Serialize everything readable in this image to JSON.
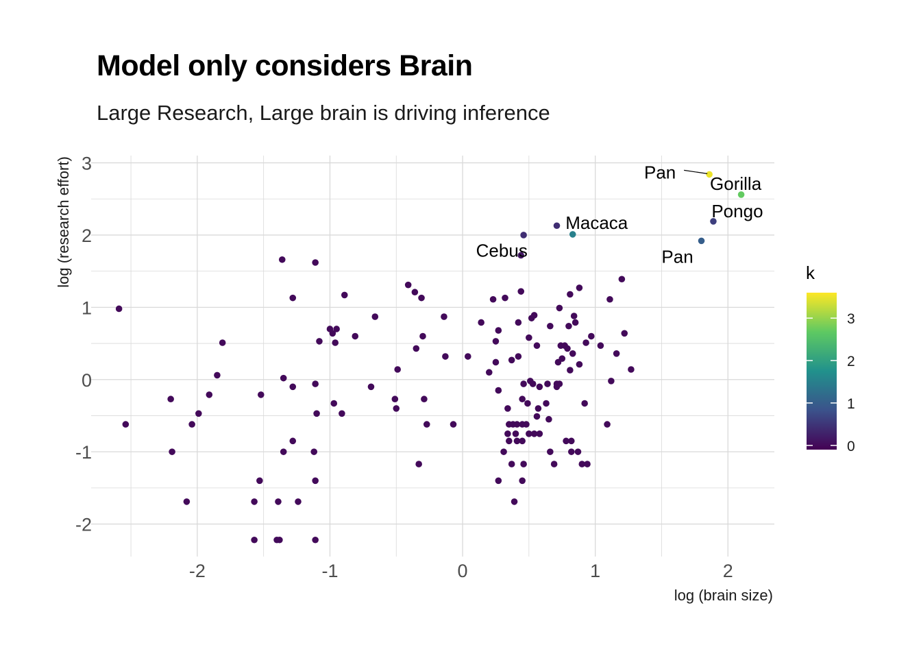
{
  "chart_data": {
    "type": "scatter",
    "title": "Model only considers Brain",
    "subtitle": "Large Research, Large brain is driving inference",
    "xlabel": "log (brain size)",
    "ylabel": "log (research effort)",
    "xlim": [
      -2.8,
      2.35
    ],
    "ylim": [
      -2.45,
      3.1
    ],
    "xticks": [
      -2,
      -1,
      0,
      1,
      2
    ],
    "xtick_labels": [
      "-2",
      "-1",
      "0",
      "1",
      "2"
    ],
    "yticks": [
      -2,
      -1,
      0,
      1,
      2,
      3
    ],
    "ytick_labels": [
      "-2",
      "-1",
      "0",
      "1",
      "2",
      "3"
    ],
    "grid": true,
    "legend": {
      "title": "k",
      "placement": "right",
      "type": "colorbar",
      "range": [
        -0.1,
        3.6
      ],
      "ticks": [
        0,
        1,
        2,
        3
      ],
      "tick_labels": [
        "0",
        "1",
        "2",
        "3"
      ]
    },
    "colors": {
      "low": "#440154",
      "high": "#fde725",
      "palette": [
        "#440154",
        "#3b528b",
        "#21918c",
        "#5ec962",
        "#fde725"
      ],
      "grid": "#d9d9d9",
      "label_line": "#000000"
    },
    "labels": [
      {
        "text": "Pan",
        "x": 1.86,
        "y": 2.84
      },
      {
        "text": "Gorilla",
        "x": 2.1,
        "y": 2.56
      },
      {
        "text": "Pongo",
        "x": 1.89,
        "y": 2.19
      },
      {
        "text": "Macaca",
        "x": 0.83,
        "y": 2.01
      },
      {
        "text": "Cebus",
        "x": 0.44,
        "y": 1.72
      },
      {
        "text": "Pan",
        "x": 1.8,
        "y": 1.92
      }
    ],
    "points": [
      {
        "x": 1.86,
        "y": 2.84,
        "k": 3.5
      },
      {
        "x": 2.1,
        "y": 2.56,
        "k": 2.7
      },
      {
        "x": 1.89,
        "y": 2.19,
        "k": 0.6
      },
      {
        "x": 0.83,
        "y": 2.01,
        "k": 1.5
      },
      {
        "x": 0.71,
        "y": 2.13,
        "k": 0.4
      },
      {
        "x": 0.46,
        "y": 2.0,
        "k": 0.4
      },
      {
        "x": 0.44,
        "y": 1.72,
        "k": 0.15
      },
      {
        "x": 1.8,
        "y": 1.92,
        "k": 1.0
      },
      {
        "x": -2.59,
        "y": 0.98,
        "k": 0
      },
      {
        "x": -2.54,
        "y": -0.62,
        "k": 0
      },
      {
        "x": -2.2,
        "y": -0.27,
        "k": 0
      },
      {
        "x": -2.19,
        "y": -1.0,
        "k": 0
      },
      {
        "x": -2.08,
        "y": -1.69,
        "k": 0
      },
      {
        "x": -2.04,
        "y": -0.62,
        "k": 0
      },
      {
        "x": -1.99,
        "y": -0.47,
        "k": 0
      },
      {
        "x": -1.91,
        "y": -0.21,
        "k": 0
      },
      {
        "x": -1.85,
        "y": 0.06,
        "k": 0
      },
      {
        "x": -1.81,
        "y": 0.51,
        "k": 0
      },
      {
        "x": -1.57,
        "y": -1.69,
        "k": 0
      },
      {
        "x": -1.57,
        "y": -2.22,
        "k": 0
      },
      {
        "x": -1.53,
        "y": -1.4,
        "k": 0
      },
      {
        "x": -1.52,
        "y": -0.21,
        "k": 0
      },
      {
        "x": -1.4,
        "y": -2.22,
        "k": 0
      },
      {
        "x": -1.38,
        "y": -2.22,
        "k": 0
      },
      {
        "x": -1.39,
        "y": -1.69,
        "k": 0
      },
      {
        "x": -1.36,
        "y": 1.66,
        "k": 0
      },
      {
        "x": -1.35,
        "y": 0.02,
        "k": 0
      },
      {
        "x": -1.35,
        "y": -1.0,
        "k": 0
      },
      {
        "x": -1.28,
        "y": 1.13,
        "k": 0
      },
      {
        "x": -1.28,
        "y": -0.1,
        "k": 0
      },
      {
        "x": -1.28,
        "y": -0.85,
        "k": 0
      },
      {
        "x": -1.24,
        "y": -1.69,
        "k": 0
      },
      {
        "x": -1.12,
        "y": -1.0,
        "k": 0
      },
      {
        "x": -1.11,
        "y": -1.4,
        "k": 0
      },
      {
        "x": -1.11,
        "y": -2.22,
        "k": 0
      },
      {
        "x": -1.11,
        "y": 1.62,
        "k": 0
      },
      {
        "x": -1.11,
        "y": -0.06,
        "k": 0
      },
      {
        "x": -1.1,
        "y": -0.47,
        "k": 0
      },
      {
        "x": -1.08,
        "y": 0.53,
        "k": 0
      },
      {
        "x": -1.0,
        "y": 0.7,
        "k": 0
      },
      {
        "x": -0.98,
        "y": 0.64,
        "k": 0
      },
      {
        "x": -0.97,
        "y": -0.33,
        "k": 0
      },
      {
        "x": -0.96,
        "y": 0.51,
        "k": 0
      },
      {
        "x": -0.95,
        "y": 0.7,
        "k": 0
      },
      {
        "x": -0.91,
        "y": -0.47,
        "k": 0
      },
      {
        "x": -0.89,
        "y": 1.17,
        "k": 0
      },
      {
        "x": -0.81,
        "y": 0.6,
        "k": 0
      },
      {
        "x": -0.69,
        "y": -0.1,
        "k": 0
      },
      {
        "x": -0.66,
        "y": 0.87,
        "k": 0
      },
      {
        "x": -0.51,
        "y": -0.27,
        "k": 0
      },
      {
        "x": -0.5,
        "y": -0.4,
        "k": 0
      },
      {
        "x": -0.49,
        "y": 0.14,
        "k": 0
      },
      {
        "x": -0.41,
        "y": 1.31,
        "k": 0
      },
      {
        "x": -0.36,
        "y": 1.21,
        "k": 0
      },
      {
        "x": -0.35,
        "y": 0.43,
        "k": 0
      },
      {
        "x": -0.33,
        "y": -1.17,
        "k": 0
      },
      {
        "x": -0.31,
        "y": 1.13,
        "k": 0
      },
      {
        "x": -0.3,
        "y": 0.6,
        "k": 0
      },
      {
        "x": -0.29,
        "y": -0.27,
        "k": 0
      },
      {
        "x": -0.27,
        "y": -0.62,
        "k": 0
      },
      {
        "x": -0.14,
        "y": 0.87,
        "k": 0
      },
      {
        "x": -0.13,
        "y": 0.32,
        "k": 0
      },
      {
        "x": -0.07,
        "y": -0.62,
        "k": 0
      },
      {
        "x": 0.04,
        "y": 0.32,
        "k": 0
      },
      {
        "x": 0.14,
        "y": 0.79,
        "k": 0
      },
      {
        "x": 0.2,
        "y": 0.1,
        "k": 0
      },
      {
        "x": 0.23,
        "y": 1.11,
        "k": 0
      },
      {
        "x": 0.25,
        "y": 0.24,
        "k": 0
      },
      {
        "x": 0.25,
        "y": 0.53,
        "k": 0
      },
      {
        "x": 0.27,
        "y": 0.68,
        "k": 0
      },
      {
        "x": 0.27,
        "y": -0.15,
        "k": 0
      },
      {
        "x": 0.27,
        "y": -1.4,
        "k": 0
      },
      {
        "x": 0.31,
        "y": -1.0,
        "k": 0
      },
      {
        "x": 0.32,
        "y": 1.13,
        "k": 0
      },
      {
        "x": 0.34,
        "y": -0.4,
        "k": 0
      },
      {
        "x": 0.34,
        "y": -0.75,
        "k": 0
      },
      {
        "x": 0.35,
        "y": -0.85,
        "k": 0
      },
      {
        "x": 0.35,
        "y": -0.62,
        "k": 0
      },
      {
        "x": 0.37,
        "y": -1.17,
        "k": 0
      },
      {
        "x": 0.37,
        "y": 0.27,
        "k": 0
      },
      {
        "x": 0.38,
        "y": -0.62,
        "k": 0
      },
      {
        "x": 0.39,
        "y": -1.69,
        "k": 0
      },
      {
        "x": 0.4,
        "y": -0.75,
        "k": 0
      },
      {
        "x": 0.41,
        "y": -0.62,
        "k": 0
      },
      {
        "x": 0.41,
        "y": -0.85,
        "k": 0
      },
      {
        "x": 0.42,
        "y": 0.32,
        "k": 0
      },
      {
        "x": 0.42,
        "y": 0.79,
        "k": 0
      },
      {
        "x": 0.44,
        "y": 1.22,
        "k": 0
      },
      {
        "x": 0.45,
        "y": -0.62,
        "k": 0
      },
      {
        "x": 0.45,
        "y": -0.85,
        "k": 0
      },
      {
        "x": 0.45,
        "y": -1.4,
        "k": 0
      },
      {
        "x": 0.45,
        "y": -0.27,
        "k": 0
      },
      {
        "x": 0.46,
        "y": -0.06,
        "k": 0
      },
      {
        "x": 0.46,
        "y": -1.17,
        "k": 0
      },
      {
        "x": 0.48,
        "y": -0.62,
        "k": 0
      },
      {
        "x": 0.49,
        "y": -0.33,
        "k": 0
      },
      {
        "x": 0.5,
        "y": -0.75,
        "k": 0
      },
      {
        "x": 0.5,
        "y": 0.58,
        "k": 0
      },
      {
        "x": 0.51,
        "y": -0.02,
        "k": 0
      },
      {
        "x": 0.52,
        "y": 0.85,
        "k": 0
      },
      {
        "x": 0.53,
        "y": -0.06,
        "k": 0
      },
      {
        "x": 0.54,
        "y": 0.89,
        "k": 0
      },
      {
        "x": 0.54,
        "y": -0.75,
        "k": 0
      },
      {
        "x": 0.56,
        "y": -0.51,
        "k": 0
      },
      {
        "x": 0.56,
        "y": 0.47,
        "k": 0
      },
      {
        "x": 0.57,
        "y": -0.4,
        "k": 0
      },
      {
        "x": 0.58,
        "y": -0.1,
        "k": 0
      },
      {
        "x": 0.58,
        "y": -0.75,
        "k": 0
      },
      {
        "x": 0.63,
        "y": -0.33,
        "k": 0
      },
      {
        "x": 0.64,
        "y": -0.06,
        "k": 0
      },
      {
        "x": 0.65,
        "y": -0.55,
        "k": 0
      },
      {
        "x": 0.66,
        "y": -1.0,
        "k": 0
      },
      {
        "x": 0.66,
        "y": 0.74,
        "k": 0
      },
      {
        "x": 0.69,
        "y": -1.17,
        "k": 0
      },
      {
        "x": 0.71,
        "y": -0.06,
        "k": 0
      },
      {
        "x": 0.71,
        "y": -0.1,
        "k": 0
      },
      {
        "x": 0.72,
        "y": 0.24,
        "k": 0
      },
      {
        "x": 0.73,
        "y": -0.06,
        "k": 0
      },
      {
        "x": 0.73,
        "y": 0.99,
        "k": 0
      },
      {
        "x": 0.74,
        "y": 0.47,
        "k": 0
      },
      {
        "x": 0.75,
        "y": 0.29,
        "k": 0
      },
      {
        "x": 0.77,
        "y": 0.47,
        "k": 0
      },
      {
        "x": 0.78,
        "y": -0.85,
        "k": 0
      },
      {
        "x": 0.79,
        "y": 0.43,
        "k": 0
      },
      {
        "x": 0.8,
        "y": 0.74,
        "k": 0
      },
      {
        "x": 0.81,
        "y": 0.13,
        "k": 0
      },
      {
        "x": 0.81,
        "y": 1.18,
        "k": 0
      },
      {
        "x": 0.82,
        "y": -1.0,
        "k": 0
      },
      {
        "x": 0.82,
        "y": -0.85,
        "k": 0
      },
      {
        "x": 0.83,
        "y": 0.36,
        "k": 0
      },
      {
        "x": 0.84,
        "y": 0.88,
        "k": 0
      },
      {
        "x": 0.85,
        "y": 0.79,
        "k": 0
      },
      {
        "x": 0.87,
        "y": -1.0,
        "k": 0
      },
      {
        "x": 0.88,
        "y": 0.21,
        "k": 0
      },
      {
        "x": 0.88,
        "y": 1.27,
        "k": 0
      },
      {
        "x": 0.9,
        "y": -1.17,
        "k": 0
      },
      {
        "x": 0.92,
        "y": -0.33,
        "k": 0
      },
      {
        "x": 0.93,
        "y": 0.51,
        "k": 0
      },
      {
        "x": 0.94,
        "y": -1.17,
        "k": 0
      },
      {
        "x": 0.97,
        "y": 0.6,
        "k": 0
      },
      {
        "x": 1.04,
        "y": 0.47,
        "k": 0
      },
      {
        "x": 1.09,
        "y": -0.62,
        "k": 0
      },
      {
        "x": 1.11,
        "y": 1.11,
        "k": 0
      },
      {
        "x": 1.12,
        "y": -0.02,
        "k": 0
      },
      {
        "x": 1.16,
        "y": 0.36,
        "k": 0
      },
      {
        "x": 1.2,
        "y": 1.39,
        "k": 0
      },
      {
        "x": 1.22,
        "y": 0.64,
        "k": 0
      },
      {
        "x": 1.27,
        "y": 0.14,
        "k": 0
      }
    ]
  }
}
